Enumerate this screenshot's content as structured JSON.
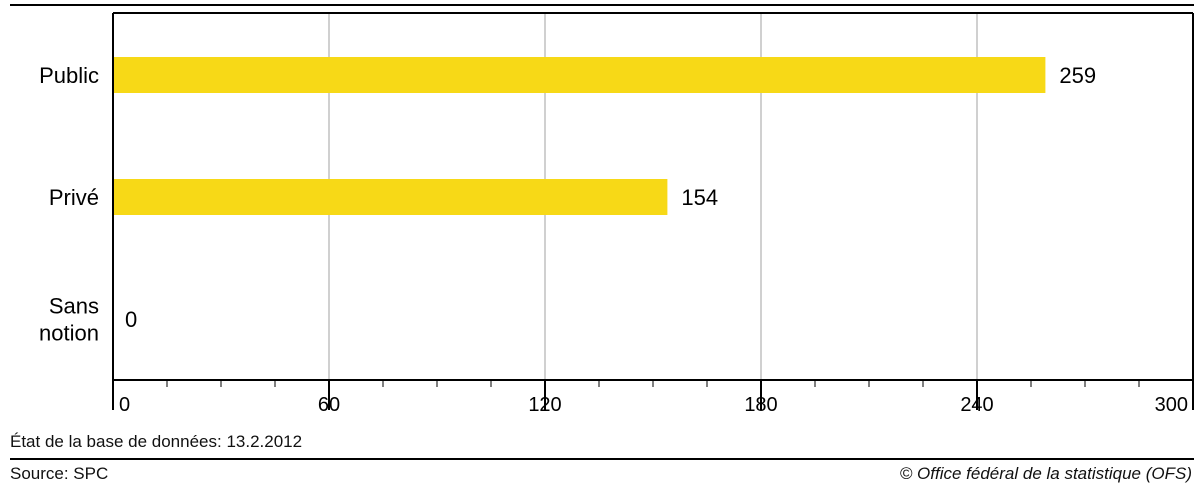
{
  "chart_data": {
    "type": "bar",
    "orientation": "horizontal",
    "categories": [
      "Public",
      "Privé",
      "Sans notion"
    ],
    "category_lines": [
      [
        "Public"
      ],
      [
        "Privé"
      ],
      [
        "Sans",
        "notion"
      ]
    ],
    "values": [
      259,
      154,
      0
    ],
    "value_labels": [
      "259",
      "154",
      "0"
    ],
    "xlim": [
      0,
      300
    ],
    "xticks": [
      0,
      60,
      120,
      180,
      240,
      300
    ],
    "xtick_labels": [
      "0",
      "60",
      "120",
      "180",
      "240",
      "300"
    ],
    "minor_tick_step": 15,
    "grid": true,
    "bar_color": "#F7D917",
    "grid_color": "#d0d0d0",
    "title": "",
    "xlabel": "",
    "ylabel": ""
  },
  "footer": {
    "db_state": "État de la base de données: 13.2.2012",
    "source": "Source: SPC",
    "copyright": "© Office fédéral de la statistique (OFS)"
  }
}
